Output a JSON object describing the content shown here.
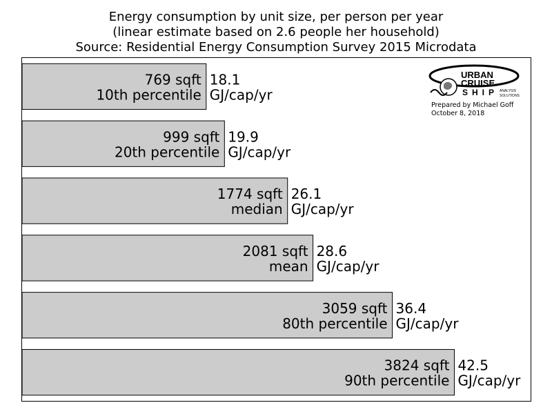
{
  "title_lines": [
    "Energy consumption by unit size, per person per year",
    "(linear estimate based on 2.6 people her household)",
    "Source: Residential Energy Consumption Survey 2015 Microdata"
  ],
  "logo": {
    "brand_line1": "URBAN",
    "brand_line2": "CRUISE",
    "brand_line3": "SHIP",
    "tagline_1": "ANALYSIS",
    "tagline_2": "SOLUTIONS",
    "credit": "Prepared by Michael Goff",
    "date": "October 8, 2018"
  },
  "colors": {
    "bar_fill": "#cccccc",
    "bar_stroke": "#000000"
  },
  "chart_data": {
    "type": "bar",
    "orientation": "horizontal",
    "xlim": [
      0,
      50
    ],
    "unit": "GJ/cap/yr",
    "categories": [
      [
        "769 sqft",
        "10th percentile"
      ],
      [
        "999 sqft",
        "20th percentile"
      ],
      [
        "1774 sqft",
        "median"
      ],
      [
        "2081 sqft",
        "mean"
      ],
      [
        "3059 sqft",
        "80th percentile"
      ],
      [
        "3824 sqft",
        "90th percentile"
      ]
    ],
    "values": [
      18.1,
      19.9,
      26.1,
      28.6,
      36.4,
      42.5
    ],
    "value_labels": [
      "18.1",
      "19.9",
      "26.1",
      "28.6",
      "36.4",
      "42.5"
    ],
    "grid": false,
    "legend": "none"
  }
}
